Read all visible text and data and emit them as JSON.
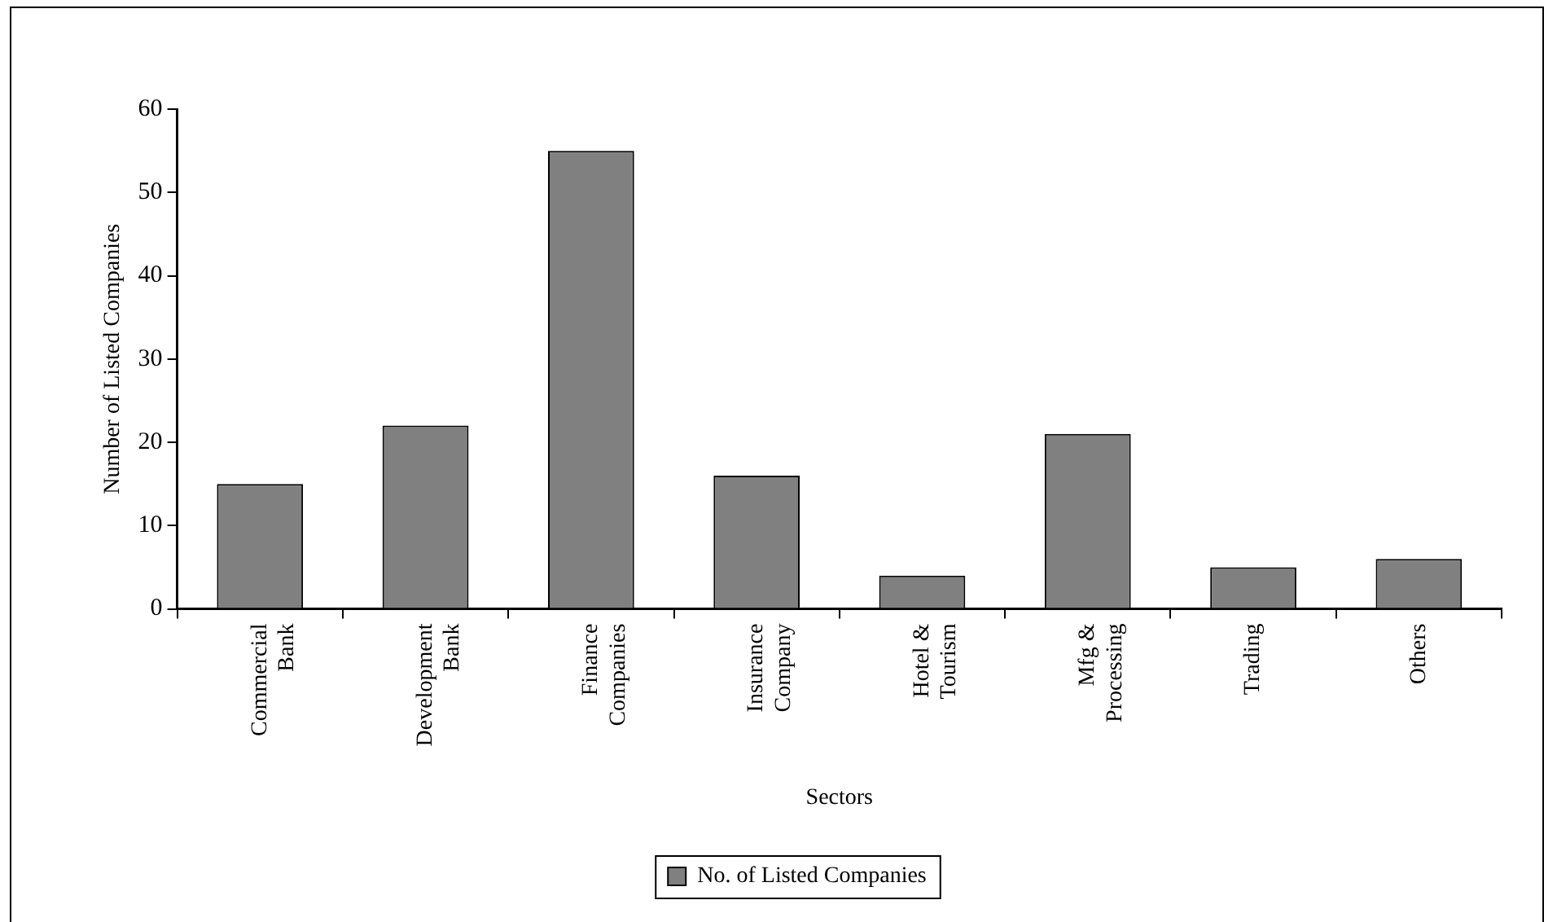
{
  "chart_data": {
    "type": "bar",
    "xlabel": "Sectors",
    "ylabel": "Number of Listed Companies",
    "categories": [
      "Commercial Bank",
      "Development Bank",
      "Finance Companies",
      "Insurance Company",
      "Hotel & Tourism",
      "Mfg & Processing",
      "Trading",
      "Others"
    ],
    "series": [
      {
        "name": "No. of Listed Companies",
        "color": "#808080",
        "values": [
          15,
          22,
          55,
          16,
          4,
          21,
          5,
          6
        ]
      }
    ],
    "ylim": [
      0,
      60
    ],
    "yticks": [
      0,
      10,
      20,
      30,
      40,
      50,
      60
    ],
    "grid": false,
    "legend": "bottom"
  }
}
